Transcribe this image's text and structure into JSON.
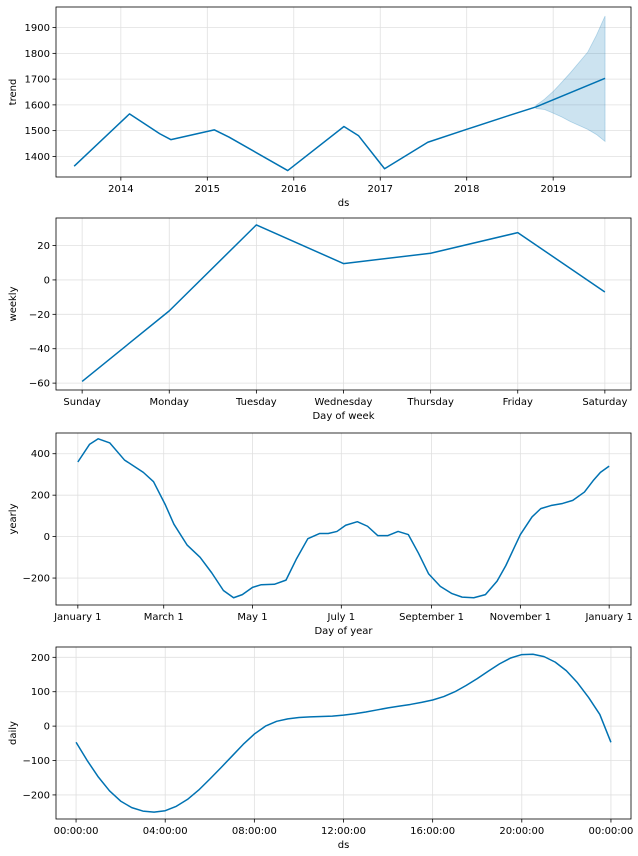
{
  "chart_data": [
    {
      "type": "line",
      "id": "trend",
      "xlabel": "ds",
      "ylabel": "trend",
      "xlim": [
        2013.25,
        2019.9
      ],
      "ylim": [
        1320,
        1980
      ],
      "x_ticks": [
        2014,
        2015,
        2016,
        2017,
        2018,
        2019
      ],
      "x_tick_labels": [
        "2014",
        "2015",
        "2016",
        "2017",
        "2018",
        "2019"
      ],
      "y_ticks": [
        1400,
        1500,
        1600,
        1700,
        1800,
        1900
      ],
      "y_tick_labels": [
        "1400",
        "1500",
        "1600",
        "1700",
        "1800",
        "1900"
      ],
      "series": [
        {
          "name": "trend",
          "x": [
            2013.46,
            2014.1,
            2014.45,
            2014.58,
            2015.08,
            2015.25,
            2015.93,
            2016.58,
            2016.75,
            2017.05,
            2017.55,
            2018.0,
            2018.5,
            2018.8,
            2019.6
          ],
          "values": [
            1362,
            1565,
            1488,
            1465,
            1503,
            1475,
            1345,
            1516,
            1480,
            1352,
            1455,
            1505,
            1560,
            1592,
            1703
          ]
        }
      ],
      "uncertainty": {
        "x": [
          2018.8,
          2018.9,
          2019.0,
          2019.1,
          2019.2,
          2019.3,
          2019.4,
          2019.5,
          2019.6
        ],
        "upper": [
          1598,
          1622,
          1652,
          1688,
          1725,
          1765,
          1805,
          1870,
          1945
        ],
        "lower": [
          1586,
          1582,
          1568,
          1553,
          1535,
          1520,
          1505,
          1485,
          1458
        ]
      }
    },
    {
      "type": "line",
      "id": "weekly",
      "xlabel": "Day of week",
      "ylabel": "weekly",
      "categories": [
        "Sunday",
        "Monday",
        "Tuesday",
        "Wednesday",
        "Thursday",
        "Friday",
        "Saturday"
      ],
      "ylim": [
        -64,
        36
      ],
      "y_ticks": [
        -60,
        -40,
        -20,
        0,
        20
      ],
      "y_tick_labels": [
        "−60",
        "−40",
        "−20",
        "0",
        "20"
      ],
      "series": [
        {
          "name": "weekly",
          "values": [
            -59,
            -18,
            32,
            9.5,
            15.5,
            27.5,
            -7
          ]
        }
      ]
    },
    {
      "type": "line",
      "id": "yearly",
      "xlabel": "Day of year",
      "ylabel": "yearly",
      "xlim": [
        -15,
        380
      ],
      "ylim": [
        -330,
        500
      ],
      "x_ticks": [
        0,
        59,
        120,
        181,
        243,
        304,
        365
      ],
      "x_tick_labels": [
        "January 1",
        "March 1",
        "May 1",
        "July 1",
        "September 1",
        "November 1",
        "January 1"
      ],
      "y_ticks": [
        -200,
        0,
        200,
        400
      ],
      "y_tick_labels": [
        "−200",
        "0",
        "200",
        "400"
      ],
      "series": [
        {
          "name": "yearly",
          "x": [
            0,
            8,
            14,
            22,
            32,
            45,
            52,
            60,
            66,
            75,
            84,
            92,
            100,
            107,
            113,
            120,
            126,
            135,
            143,
            150,
            158,
            166,
            172,
            178,
            184,
            192,
            199,
            206,
            213,
            220,
            227,
            234,
            241,
            249,
            257,
            264,
            272,
            280,
            288,
            294,
            300,
            304,
            312,
            318,
            325,
            333,
            340,
            348,
            354,
            359,
            365
          ],
          "values": [
            360,
            445,
            472,
            452,
            370,
            310,
            265,
            155,
            60,
            -40,
            -100,
            -175,
            -260,
            -295,
            -280,
            -245,
            -232,
            -230,
            -210,
            -110,
            -10,
            15,
            15,
            25,
            55,
            72,
            50,
            5,
            5,
            25,
            10,
            -80,
            -180,
            -240,
            -275,
            -292,
            -295,
            -280,
            -215,
            -140,
            -50,
            10,
            95,
            135,
            150,
            160,
            175,
            215,
            270,
            310,
            340
          ]
        }
      ]
    },
    {
      "type": "line",
      "id": "daily",
      "xlabel": "ds",
      "ylabel": "daily",
      "xlim": [
        -0.9,
        24.9
      ],
      "ylim": [
        -270,
        230
      ],
      "x_ticks": [
        0,
        4,
        8,
        12,
        16,
        20,
        24
      ],
      "x_tick_labels": [
        "00:00:00",
        "04:00:00",
        "08:00:00",
        "12:00:00",
        "16:00:00",
        "20:00:00",
        "00:00:00"
      ],
      "y_ticks": [
        -200,
        -100,
        0,
        100,
        200
      ],
      "y_tick_labels": [
        "−200",
        "−100",
        "0",
        "100",
        "200"
      ],
      "series": [
        {
          "name": "daily",
          "x": [
            0,
            0.5,
            1,
            1.5,
            2,
            2.5,
            3,
            3.5,
            4,
            4.5,
            5,
            5.5,
            6,
            6.5,
            7,
            7.5,
            8,
            8.5,
            9,
            9.5,
            10,
            10.5,
            11,
            11.5,
            12,
            12.5,
            13,
            13.5,
            14,
            14.5,
            15,
            15.5,
            16,
            16.5,
            17,
            17.5,
            18,
            18.5,
            19,
            19.5,
            20,
            20.5,
            21,
            21.5,
            22,
            22.5,
            23,
            23.5,
            24
          ],
          "values": [
            -47,
            -100,
            -148,
            -188,
            -218,
            -237,
            -247,
            -250,
            -246,
            -233,
            -213,
            -186,
            -154,
            -121,
            -87,
            -53,
            -23,
            0,
            14,
            21,
            25,
            27,
            28,
            29,
            32,
            36,
            41,
            47,
            53,
            58,
            63,
            69,
            76,
            86,
            100,
            118,
            138,
            160,
            181,
            198,
            208,
            209,
            202,
            186,
            161,
            126,
            83,
            34,
            -47
          ]
        }
      ]
    }
  ]
}
